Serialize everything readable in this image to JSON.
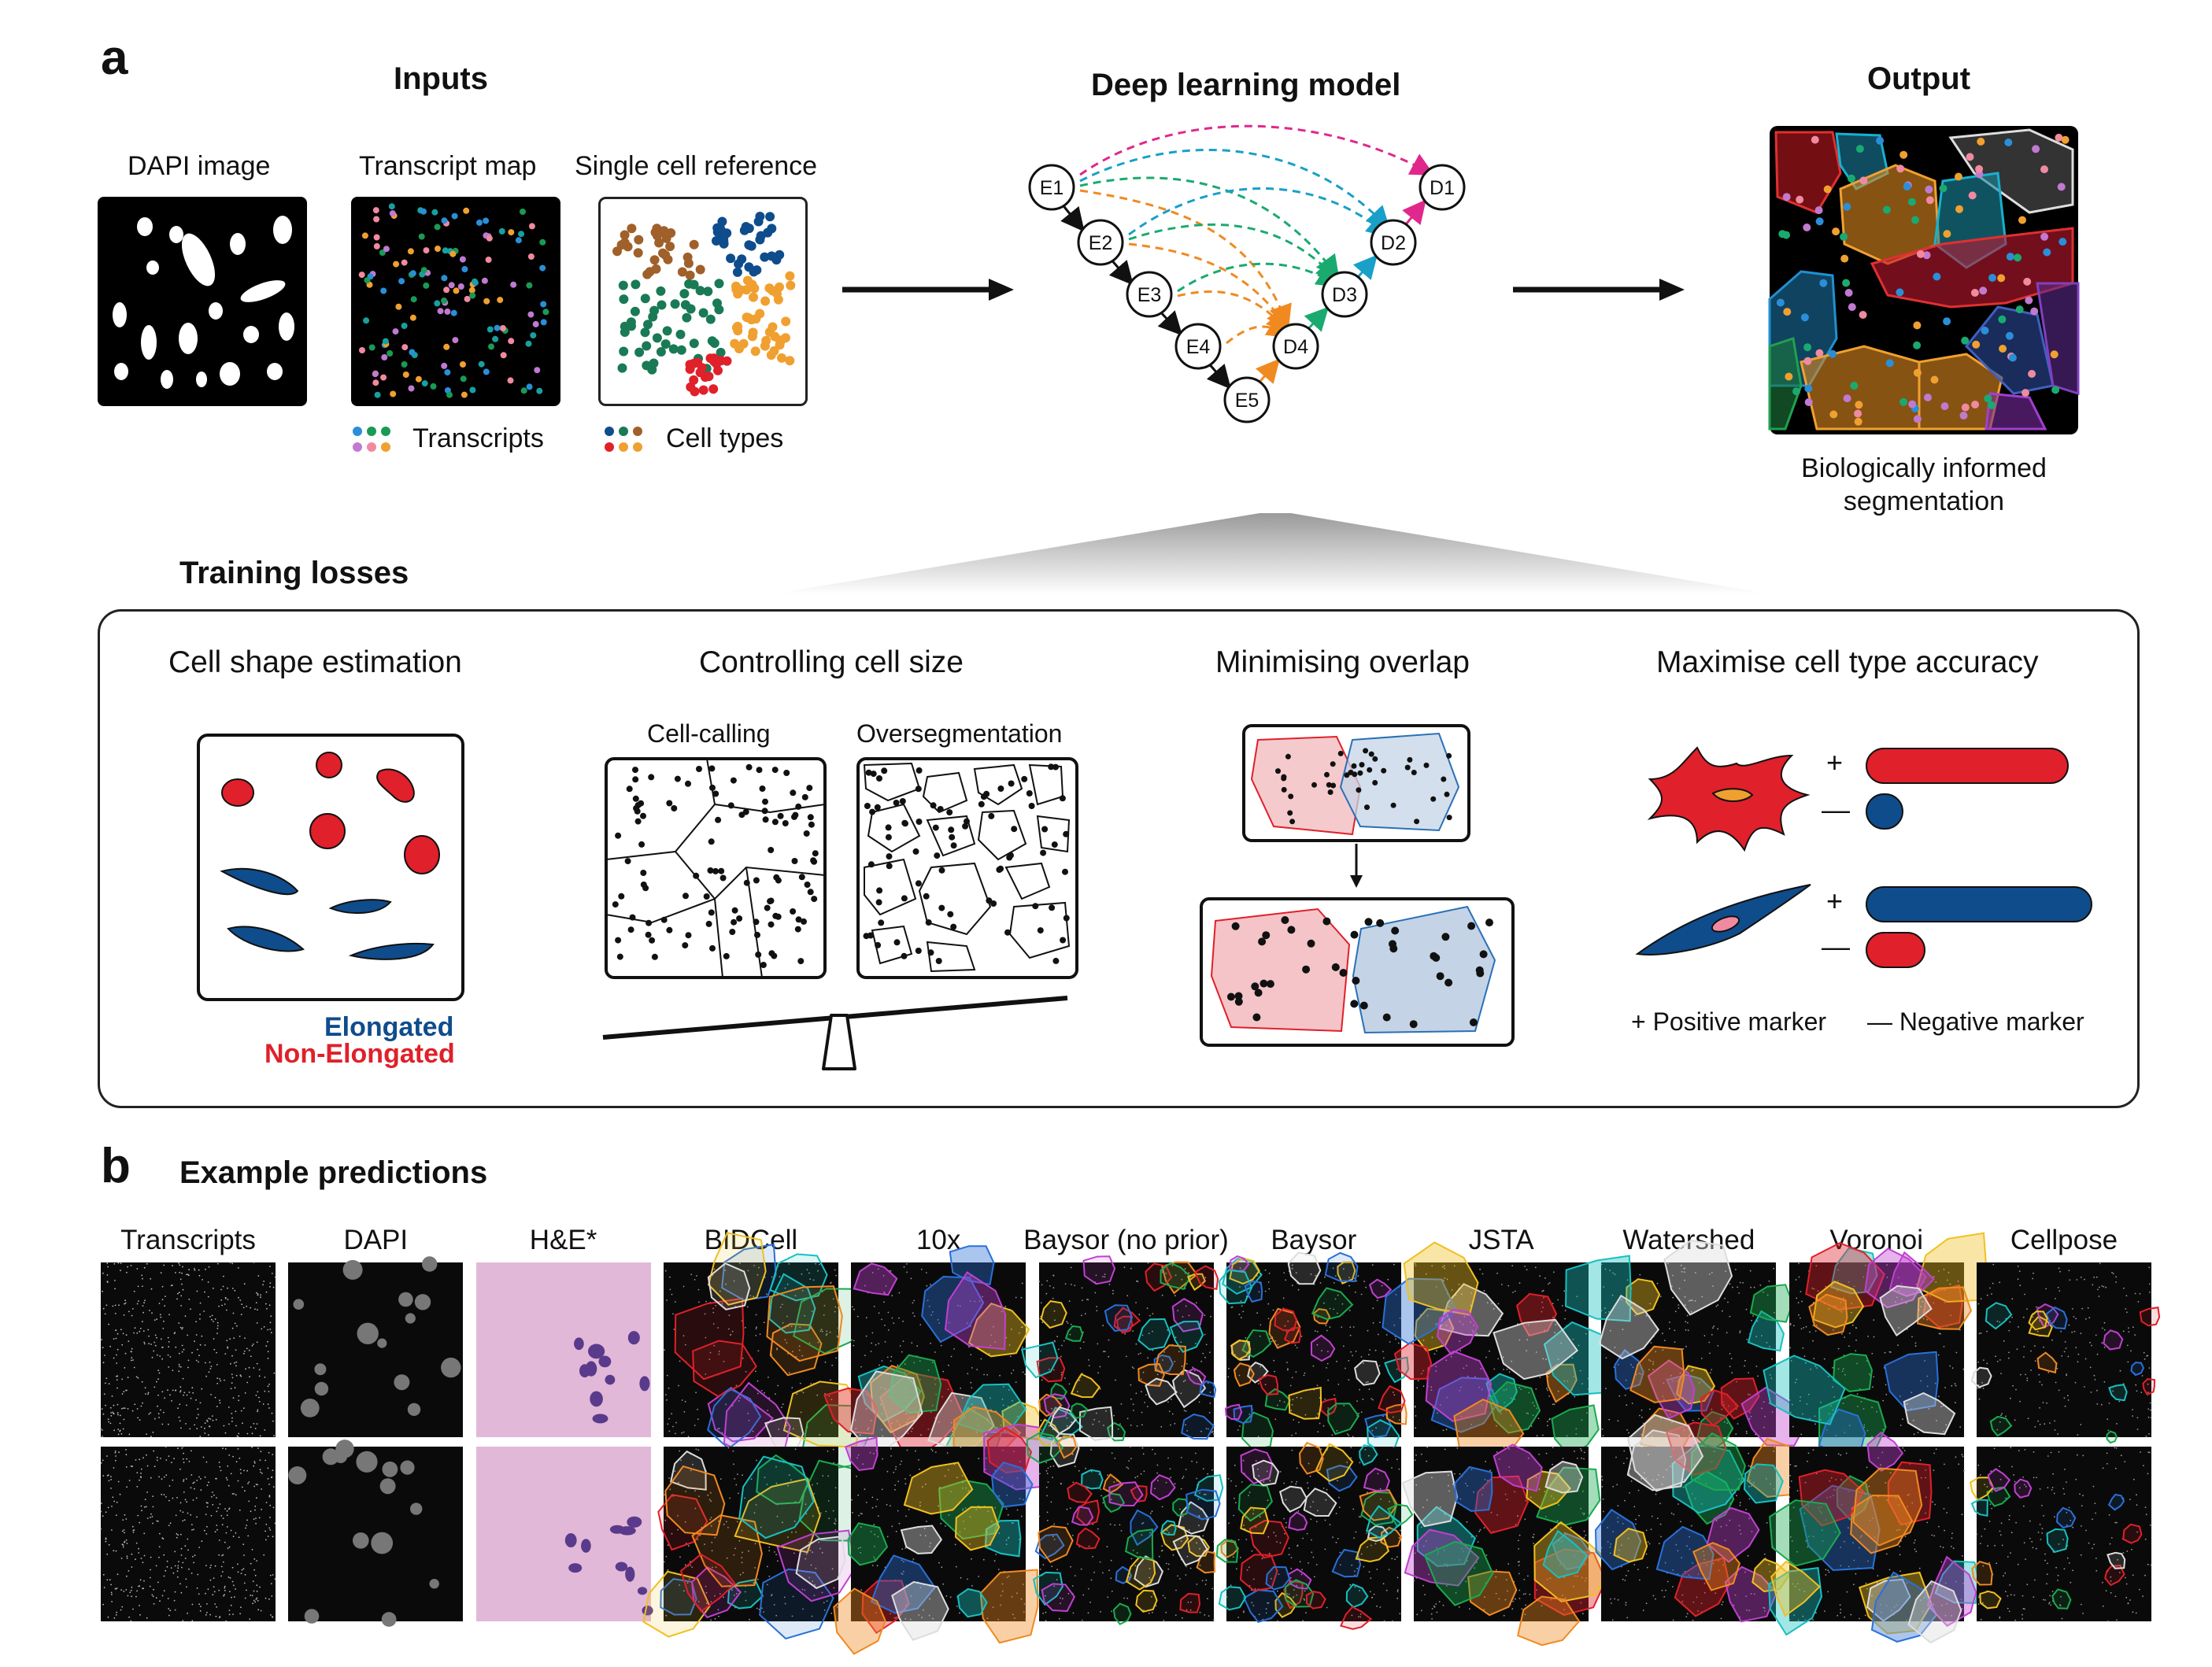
{
  "panel_a": {
    "letter": "a",
    "inputs": {
      "title": "Inputs",
      "dapi_label": "DAPI image",
      "transcript_label": "Transcript map",
      "reference_label": "Single cell reference",
      "transcripts_legend": "Transcripts",
      "celltypes_legend": "Cell types"
    },
    "model": {
      "title": "Deep learning model",
      "nodes": [
        "E1",
        "E2",
        "E3",
        "E4",
        "E5",
        "D4",
        "D3",
        "D2",
        "D1"
      ]
    },
    "output": {
      "title": "Output",
      "caption_line1": "Biologically informed",
      "caption_line2": "segmentation"
    },
    "training": {
      "title": "Training losses",
      "shape": {
        "title": "Cell shape estimation",
        "elongated": "Elongated",
        "non_elongated": "Non-Elongated"
      },
      "size": {
        "title": "Controlling cell size",
        "cell_calling": "Cell-calling",
        "overseg": "Oversegmentation"
      },
      "overlap": {
        "title": "Minimising overlap"
      },
      "accuracy": {
        "title": "Maximise cell type accuracy",
        "plus": "+",
        "minus": "—",
        "positive": "+ Positive marker",
        "negative": "— Negative marker"
      }
    }
  },
  "panel_b": {
    "letter": "b",
    "title": "Example predictions",
    "columns": [
      "Transcripts",
      "DAPI",
      "H&E*",
      "BIDCell",
      "10x",
      "Baysor (no prior)",
      "Baysor",
      "JSTA",
      "Watershed",
      "Voronoi",
      "Cellpose"
    ]
  },
  "colors": {
    "red": "#e0202a",
    "blue": "#0f4c8c",
    "green": "#1a9a55",
    "orange": "#f0a030",
    "magenta": "#e0288c",
    "teal": "#18a0a0",
    "brown": "#a0602a",
    "pink_fill": "#f4c4c8",
    "blue_fill": "#c4d4e6"
  }
}
